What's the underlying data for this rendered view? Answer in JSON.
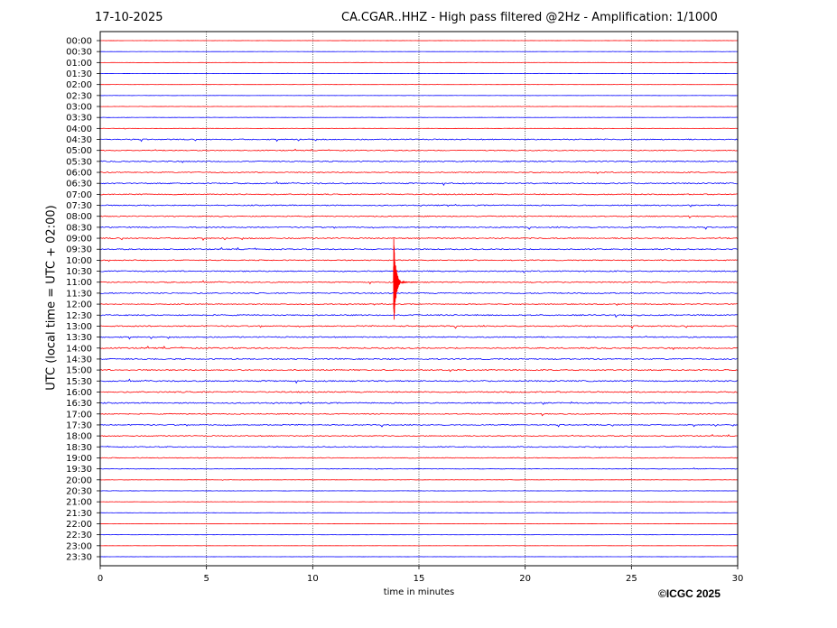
{
  "header": {
    "date": "17-10-2025",
    "title": "CA.CGAR..HHZ - High pass filtered @2Hz - Amplification: 1/1000"
  },
  "footer": {
    "copyright": "©ICGC 2025"
  },
  "chart_data": {
    "type": "line",
    "xlabel": "time in minutes",
    "ylabel": "UTC (local time = UTC + 02:00)",
    "xlim": [
      0,
      30
    ],
    "x_ticks": [
      0,
      5,
      10,
      15,
      20,
      25,
      30
    ],
    "x_gridlines": [
      5,
      10,
      15,
      20,
      25
    ],
    "row_labels": [
      "00:00",
      "00:30",
      "01:00",
      "01:30",
      "02:00",
      "02:30",
      "03:00",
      "03:30",
      "04:00",
      "04:30",
      "05:00",
      "05:30",
      "06:00",
      "06:30",
      "07:00",
      "07:30",
      "08:00",
      "08:30",
      "09:00",
      "09:30",
      "10:00",
      "10:30",
      "11:00",
      "11:30",
      "12:00",
      "12:30",
      "13:00",
      "13:30",
      "14:00",
      "14:30",
      "15:00",
      "15:30",
      "16:00",
      "16:30",
      "17:00",
      "17:30",
      "18:00",
      "18:30",
      "19:00",
      "19:30",
      "20:00",
      "20:30",
      "21:00",
      "21:30",
      "22:00",
      "22:30",
      "23:00",
      "23:30"
    ],
    "trace_colors": [
      "#ff0000",
      "#0000ff"
    ],
    "noise_level": [
      0.08,
      0.08,
      0.1,
      0.1,
      0.1,
      0.1,
      0.12,
      0.12,
      0.18,
      0.55,
      0.45,
      0.55,
      0.5,
      0.6,
      0.55,
      0.55,
      0.5,
      0.55,
      0.6,
      0.6,
      0.5,
      0.6,
      0.55,
      0.55,
      0.45,
      0.6,
      0.6,
      0.6,
      0.65,
      0.65,
      0.6,
      0.65,
      0.65,
      0.6,
      0.5,
      0.5,
      0.5,
      0.5,
      0.4,
      0.3,
      0.15,
      0.15,
      0.12,
      0.12,
      0.1,
      0.1,
      0.08,
      0.08
    ],
    "events": [
      {
        "row": "11:00",
        "time": 13.8,
        "amplitude": 5.5
      }
    ]
  }
}
